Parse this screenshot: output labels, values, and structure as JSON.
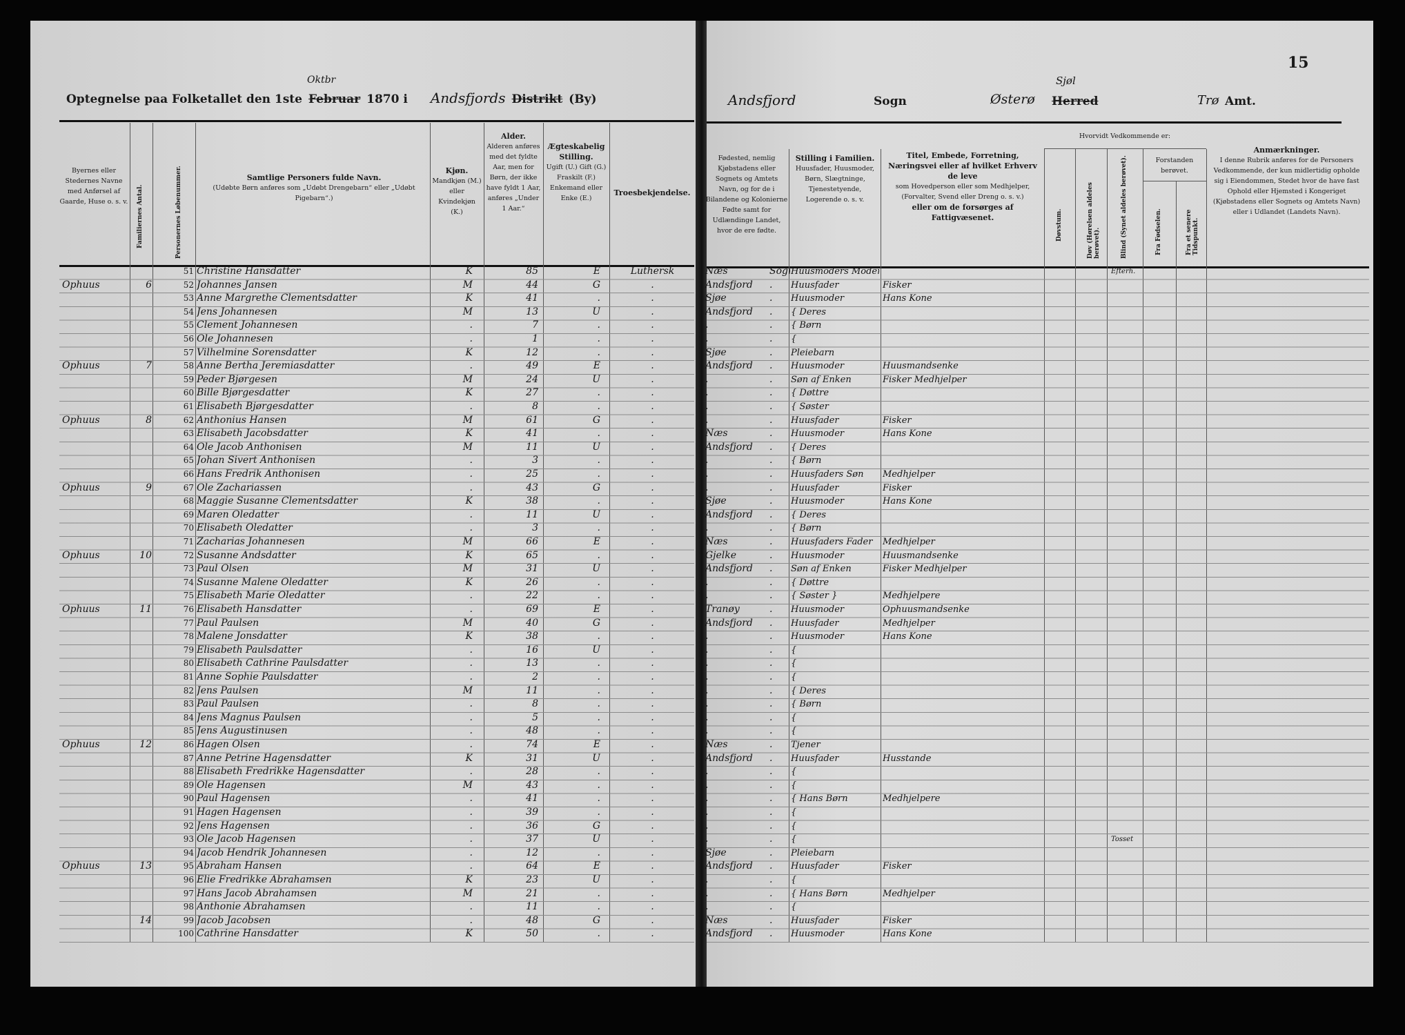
{
  "header": {
    "title_prefix": "Optegnelse paa Folketallet den 1ste",
    "month_printed": "Februar",
    "month_written": "Oktbr",
    "year_suffix": "1870 i",
    "district_written": "Andsfjords",
    "district_label": "Distrikt",
    "district_by": "(By)",
    "sogn_written": "Andsfjord",
    "sogn_label": "Sogn",
    "herred_written": "Østerø",
    "herred_label": "Herred",
    "herred_alt": "Sjøl",
    "amt_written": "Trø",
    "amt_label": "Amt.",
    "page_number": "15"
  },
  "columns": {
    "place": "Byernes eller Stedernes Navne med Anførsel af Gaarde, Huse o. s. v.",
    "families": "Familiernes Antal.",
    "person_no": "Personernes Løbenummer.",
    "name_title": "Samtlige Personers fulde Navn.",
    "name_note": "(Udøbte Børn anføres som „Udøbt Drengebarn“ eller „Udøbt Pigebarn“.)",
    "sex_title": "Kjøn.",
    "sex_note": "Mandkjøn (M.) eller Kvindekjøn (K.)",
    "age_title": "Alder.",
    "age_note": "Alderen anføres med det fyldte Aar, men for Børn, der ikke have fyldt 1 Aar, anføres „Under 1 Aar.“",
    "civil_title": "Ægteskabelig Stilling.",
    "civil_note": "Ugift (U.) Gift (G.) Fraskilt (F.) Enkemand eller Enke (E.)",
    "faith": "Troesbekjendelse.",
    "born": "Fødested, nemlig Kjøbstadens eller Sognets og Amtets Navn, og for de i Bilandene og Kolonierne Fødte samt for Udlændinge Landet, hvor de ere fødte.",
    "role_title": "Stilling i Familien.",
    "role_note": "Huusfader, Huusmoder, Børn, Slægtninge, Tjenestetyende, Logerende o. s. v.",
    "occ_title": "Titel, Embede, Forretning, Næringsvei eller af hvilket Erhverv de leve",
    "occ_note": "som Hovedperson eller som Medhjelper, (Forvalter, Svend eller Dreng o. s. v.)",
    "occ_tail": "eller om de forsørges af Fattigvæsenet.",
    "disab_group": "Hvorvidt Vedkommende er:",
    "deafmute": "Døvstum.",
    "deaf": "Døv (Hørelsen aldeles berøvet).",
    "blind": "Blind (Synet aldeles berøvet).",
    "insane_group": "Forstanden berøvet.",
    "from_birth": "Fra Fødselen.",
    "later": "Fra et senere Tidspunkt.",
    "remarks_title": "Anmærkninger.",
    "remarks_note": "I denne Rubrik anføres for de Personers Vedkommende, der kun midlertidig opholde sig i Eiendommen, Stedet hvor de have fast Ophold eller Hjemsted i Kongeriget (Kjøbstadens eller Sognets og Amtets Navn) eller i Udlandet (Landets Navn)."
  },
  "rows": [
    {
      "n": "51",
      "place": "",
      "fam": "",
      "name": "Christine Hansdatter",
      "sex": "K",
      "age": "85",
      "civil": "E",
      "faith": "Luthersk",
      "born": "Næs",
      "sogn": "Sogn",
      "role": "Huusmoders Moder",
      "occ": "",
      "remark": "Efterh."
    },
    {
      "n": "52",
      "place": "Ophuus",
      "fam": "6",
      "name": "Johannes Jansen",
      "sex": "M",
      "age": "44",
      "civil": "G",
      "faith": ".",
      "born": "Andsfjord",
      "sogn": ".",
      "role": "Huusfader",
      "occ": "Fisker",
      "remark": ""
    },
    {
      "n": "53",
      "place": "",
      "fam": "",
      "name": "Anne Margrethe Clementsdatter",
      "sex": "K",
      "age": "41",
      "civil": ".",
      "faith": ".",
      "born": "Sjøe",
      "sogn": ".",
      "role": "Huusmoder",
      "occ": "Hans Kone",
      "remark": ""
    },
    {
      "n": "54",
      "place": "",
      "fam": "",
      "name": "Jens Johannesen",
      "sex": "M",
      "age": "13",
      "civil": "U",
      "faith": ".",
      "born": "Andsfjord",
      "sogn": ".",
      "role": "{ Deres",
      "occ": "",
      "remark": ""
    },
    {
      "n": "55",
      "place": "",
      "fam": "",
      "name": "Clement Johannesen",
      "sex": ".",
      "age": "7",
      "civil": ".",
      "faith": ".",
      "born": ".",
      "sogn": ".",
      "role": "{   Børn",
      "occ": "",
      "remark": ""
    },
    {
      "n": "56",
      "place": "",
      "fam": "",
      "name": "Ole Johannesen",
      "sex": ".",
      "age": "1",
      "civil": ".",
      "faith": ".",
      "born": ".",
      "sogn": ".",
      "role": "{",
      "occ": "",
      "remark": ""
    },
    {
      "n": "57",
      "place": "",
      "fam": "",
      "name": "Vilhelmine Sorensdatter",
      "sex": "K",
      "age": "12",
      "civil": ".",
      "faith": ".",
      "born": "Sjøe",
      "sogn": ".",
      "role": "Pleiebarn",
      "occ": "",
      "remark": ""
    },
    {
      "n": "58",
      "place": "Ophuus",
      "fam": "7",
      "name": "Anne Bertha Jeremiasdatter",
      "sex": ".",
      "age": "49",
      "civil": "E",
      "faith": ".",
      "born": "Andsfjord",
      "sogn": ".",
      "role": "Huusmoder",
      "occ": "Huusmandsenke",
      "remark": ""
    },
    {
      "n": "59",
      "place": "",
      "fam": "",
      "name": "Peder Bjørgesen",
      "sex": "M",
      "age": "24",
      "civil": "U",
      "faith": ".",
      "born": ".",
      "sogn": ".",
      "role": "Søn af Enken",
      "occ": "Fisker Medhjelper",
      "remark": ""
    },
    {
      "n": "60",
      "place": "",
      "fam": "",
      "name": "Bille Bjørgesdatter",
      "sex": "K",
      "age": "27",
      "civil": ".",
      "faith": ".",
      "born": ".",
      "sogn": ".",
      "role": "{ Døttre",
      "occ": "",
      "remark": ""
    },
    {
      "n": "61",
      "place": "",
      "fam": "",
      "name": "Elisabeth Bjørgesdatter",
      "sex": ".",
      "age": "8",
      "civil": ".",
      "faith": ".",
      "born": ".",
      "sogn": ".",
      "role": "{ Søster",
      "occ": "",
      "remark": ""
    },
    {
      "n": "62",
      "place": "Ophuus",
      "fam": "8",
      "name": "Anthonius Hansen",
      "sex": "M",
      "age": "61",
      "civil": "G",
      "faith": ".",
      "born": ".",
      "sogn": ".",
      "role": "Huusfader",
      "occ": "Fisker",
      "remark": ""
    },
    {
      "n": "63",
      "place": "",
      "fam": "",
      "name": "Elisabeth Jacobsdatter",
      "sex": "K",
      "age": "41",
      "civil": ".",
      "faith": ".",
      "born": "Næs",
      "sogn": ".",
      "role": "Huusmoder",
      "occ": "Hans Kone",
      "remark": ""
    },
    {
      "n": "64",
      "place": "",
      "fam": "",
      "name": "Ole Jacob Anthonisen",
      "sex": "M",
      "age": "11",
      "civil": "U",
      "faith": ".",
      "born": "Andsfjord",
      "sogn": ".",
      "role": "{ Deres",
      "occ": "",
      "remark": ""
    },
    {
      "n": "65",
      "place": "",
      "fam": "",
      "name": "Johan Sivert Anthonisen",
      "sex": ".",
      "age": "3",
      "civil": ".",
      "faith": ".",
      "born": ".",
      "sogn": ".",
      "role": "{   Børn",
      "occ": "",
      "remark": ""
    },
    {
      "n": "66",
      "place": "",
      "fam": "",
      "name": "Hans Fredrik Anthonisen",
      "sex": ".",
      "age": "25",
      "civil": ".",
      "faith": ".",
      "born": ".",
      "sogn": ".",
      "role": "Huusfaders Søn",
      "occ": "Medhjelper",
      "remark": ""
    },
    {
      "n": "67",
      "place": "Ophuus",
      "fam": "9",
      "name": "Ole Zachariassen",
      "sex": ".",
      "age": "43",
      "civil": "G",
      "faith": ".",
      "born": ".",
      "sogn": ".",
      "role": "Huusfader",
      "occ": "Fisker",
      "remark": ""
    },
    {
      "n": "68",
      "place": "",
      "fam": "",
      "name": "Maggie Susanne Clementsdatter",
      "sex": "K",
      "age": "38",
      "civil": ".",
      "faith": ".",
      "born": "Sjøe",
      "sogn": ".",
      "role": "Huusmoder",
      "occ": "Hans Kone",
      "remark": ""
    },
    {
      "n": "69",
      "place": "",
      "fam": "",
      "name": "Maren Oledatter",
      "sex": ".",
      "age": "11",
      "civil": "U",
      "faith": ".",
      "born": "Andsfjord",
      "sogn": ".",
      "role": "{ Deres",
      "occ": "",
      "remark": ""
    },
    {
      "n": "70",
      "place": "",
      "fam": "",
      "name": "Elisabeth Oledatter",
      "sex": ".",
      "age": "3",
      "civil": ".",
      "faith": ".",
      "born": ".",
      "sogn": ".",
      "role": "{   Børn",
      "occ": "",
      "remark": ""
    },
    {
      "n": "71",
      "place": "",
      "fam": "",
      "name": "Zacharias Johannesen",
      "sex": "M",
      "age": "66",
      "civil": "E",
      "faith": ".",
      "born": "Næs",
      "sogn": ".",
      "role": "Huusfaders Fader",
      "occ": "Medhjelper",
      "remark": ""
    },
    {
      "n": "72",
      "place": "Ophuus",
      "fam": "10",
      "name": "Susanne Andsdatter",
      "sex": "K",
      "age": "65",
      "civil": ".",
      "faith": ".",
      "born": "Gjelke",
      "sogn": ".",
      "role": "Huusmoder",
      "occ": "Huusmandsenke",
      "remark": ""
    },
    {
      "n": "73",
      "place": "",
      "fam": "",
      "name": "Paul Olsen",
      "sex": "M",
      "age": "31",
      "civil": "U",
      "faith": ".",
      "born": "Andsfjord",
      "sogn": ".",
      "role": "Søn af Enken",
      "occ": "Fisker Medhjelper",
      "remark": ""
    },
    {
      "n": "74",
      "place": "",
      "fam": "",
      "name": "Susanne Malene Oledatter",
      "sex": "K",
      "age": "26",
      "civil": ".",
      "faith": ".",
      "born": ".",
      "sogn": ".",
      "role": "{ Døttre",
      "occ": "",
      "remark": ""
    },
    {
      "n": "75",
      "place": "",
      "fam": "",
      "name": "Elisabeth Marie Oledatter",
      "sex": ".",
      "age": "22",
      "civil": ".",
      "faith": ".",
      "born": ".",
      "sogn": ".",
      "role": "{ Søster }",
      "occ": "Medhjelpere",
      "remark": ""
    },
    {
      "n": "76",
      "place": "Ophuus",
      "fam": "11",
      "name": "Elisabeth Hansdatter",
      "sex": ".",
      "age": "69",
      "civil": "E",
      "faith": ".",
      "born": "Tranøy",
      "sogn": ".",
      "role": "Huusmoder",
      "occ": "Ophuusmandsenke",
      "remark": ""
    },
    {
      "n": "77",
      "place": "",
      "fam": "",
      "name": "Paul Paulsen",
      "sex": "M",
      "age": "40",
      "civil": "G",
      "faith": ".",
      "born": "Andsfjord",
      "sogn": ".",
      "role": "Huusfader",
      "occ": "Medhjelper",
      "remark": ""
    },
    {
      "n": "78",
      "place": "",
      "fam": "",
      "name": "Malene Jonsdatter",
      "sex": "K",
      "age": "38",
      "civil": ".",
      "faith": ".",
      "born": ".",
      "sogn": ".",
      "role": "Huusmoder",
      "occ": "Hans Kone",
      "remark": ""
    },
    {
      "n": "79",
      "place": "",
      "fam": "",
      "name": "Elisabeth Paulsdatter",
      "sex": ".",
      "age": "16",
      "civil": "U",
      "faith": ".",
      "born": ".",
      "sogn": ".",
      "role": "{",
      "occ": "",
      "remark": ""
    },
    {
      "n": "80",
      "place": "",
      "fam": "",
      "name": "Elisabeth Cathrine Paulsdatter",
      "sex": ".",
      "age": "13",
      "civil": ".",
      "faith": ".",
      "born": ".",
      "sogn": ".",
      "role": "{",
      "occ": "",
      "remark": ""
    },
    {
      "n": "81",
      "place": "",
      "fam": "",
      "name": "Anne Sophie Paulsdatter",
      "sex": ".",
      "age": "2",
      "civil": ".",
      "faith": ".",
      "born": ".",
      "sogn": ".",
      "role": "{",
      "occ": "",
      "remark": ""
    },
    {
      "n": "82",
      "place": "",
      "fam": "",
      "name": "Jens Paulsen",
      "sex": "M",
      "age": "11",
      "civil": ".",
      "faith": ".",
      "born": ".",
      "sogn": ".",
      "role": "{ Deres",
      "occ": "",
      "remark": ""
    },
    {
      "n": "83",
      "place": "",
      "fam": "",
      "name": "Paul Paulsen",
      "sex": ".",
      "age": "8",
      "civil": ".",
      "faith": ".",
      "born": ".",
      "sogn": ".",
      "role": "{   Børn",
      "occ": "",
      "remark": ""
    },
    {
      "n": "84",
      "place": "",
      "fam": "",
      "name": "Jens Magnus Paulsen",
      "sex": ".",
      "age": "5",
      "civil": ".",
      "faith": ".",
      "born": ".",
      "sogn": ".",
      "role": "{",
      "occ": "",
      "remark": ""
    },
    {
      "n": "85",
      "place": "",
      "fam": "",
      "name": "Jens Augustinusen",
      "sex": ".",
      "age": "48",
      "civil": ".",
      "faith": ".",
      "born": ".",
      "sogn": ".",
      "role": "{",
      "occ": "",
      "remark": ""
    },
    {
      "n": "86",
      "place": "Ophuus",
      "fam": "12",
      "name": "Hagen Olsen",
      "sex": ".",
      "age": "74",
      "civil": "E",
      "faith": ".",
      "born": "Næs",
      "sogn": ".",
      "role": "Tjener",
      "occ": "",
      "remark": ""
    },
    {
      "n": "87",
      "place": "",
      "fam": "",
      "name": "Anne Petrine Hagensdatter",
      "sex": "K",
      "age": "31",
      "civil": "U",
      "faith": ".",
      "born": "Andsfjord",
      "sogn": ".",
      "role": "Huusfader",
      "occ": "Husstande",
      "remark": ""
    },
    {
      "n": "88",
      "place": "",
      "fam": "",
      "name": "Elisabeth Fredrikke Hagensdatter",
      "sex": ".",
      "age": "28",
      "civil": ".",
      "faith": ".",
      "born": ".",
      "sogn": ".",
      "role": "{",
      "occ": "",
      "remark": ""
    },
    {
      "n": "89",
      "place": "",
      "fam": "",
      "name": "Ole Hagensen",
      "sex": "M",
      "age": "43",
      "civil": ".",
      "faith": ".",
      "born": ".",
      "sogn": ".",
      "role": "{",
      "occ": "",
      "remark": ""
    },
    {
      "n": "90",
      "place": "",
      "fam": "",
      "name": "Paul Hagensen",
      "sex": ".",
      "age": "41",
      "civil": ".",
      "faith": ".",
      "born": ".",
      "sogn": ".",
      "role": "{ Hans Børn",
      "occ": "Medhjelpere",
      "remark": ""
    },
    {
      "n": "91",
      "place": "",
      "fam": "",
      "name": "Hagen Hagensen",
      "sex": ".",
      "age": "39",
      "civil": ".",
      "faith": ".",
      "born": ".",
      "sogn": ".",
      "role": "{",
      "occ": "",
      "remark": ""
    },
    {
      "n": "92",
      "place": "",
      "fam": "",
      "name": "Jens Hagensen",
      "sex": ".",
      "age": "36",
      "civil": "G",
      "faith": ".",
      "born": ".",
      "sogn": ".",
      "role": "{",
      "occ": "",
      "remark": ""
    },
    {
      "n": "93",
      "place": "",
      "fam": "",
      "name": "Ole Jacob Hagensen",
      "sex": ".",
      "age": "37",
      "civil": "U",
      "faith": ".",
      "born": ".",
      "sogn": ".",
      "role": "{",
      "occ": "",
      "remark": "Tosset"
    },
    {
      "n": "94",
      "place": "",
      "fam": "",
      "name": "Jacob Hendrik Johannesen",
      "sex": ".",
      "age": "12",
      "civil": ".",
      "faith": ".",
      "born": "Sjøe",
      "sogn": ".",
      "role": "Pleiebarn",
      "occ": "",
      "remark": ""
    },
    {
      "n": "95",
      "place": "Ophuus",
      "fam": "13",
      "name": "Abraham Hansen",
      "sex": ".",
      "age": "64",
      "civil": "E",
      "faith": ".",
      "born": "Andsfjord",
      "sogn": ".",
      "role": "Huusfader",
      "occ": "Fisker",
      "remark": ""
    },
    {
      "n": "96",
      "place": "",
      "fam": "",
      "name": "Elie Fredrikke Abrahamsen",
      "sex": "K",
      "age": "23",
      "civil": "U",
      "faith": ".",
      "born": ".",
      "sogn": ".",
      "role": "{",
      "occ": "",
      "remark": ""
    },
    {
      "n": "97",
      "place": "",
      "fam": "",
      "name": "Hans Jacob Abrahamsen",
      "sex": "M",
      "age": "21",
      "civil": ".",
      "faith": ".",
      "born": ".",
      "sogn": ".",
      "role": "{ Hans Børn",
      "occ": "Medhjelper",
      "remark": ""
    },
    {
      "n": "98",
      "place": "",
      "fam": "",
      "name": "Anthonie Abrahamsen",
      "sex": ".",
      "age": "11",
      "civil": ".",
      "faith": ".",
      "born": ".",
      "sogn": ".",
      "role": "{",
      "occ": "",
      "remark": ""
    },
    {
      "n": "99",
      "place": "",
      "fam": "14",
      "name": "Jacob Jacobsen",
      "sex": ".",
      "age": "48",
      "civil": "G",
      "faith": ".",
      "born": "Næs",
      "sogn": ".",
      "role": "Huusfader",
      "occ": "Fisker",
      "remark": ""
    },
    {
      "n": "100",
      "place": "",
      "fam": "",
      "name": "Cathrine Hansdatter",
      "sex": "K",
      "age": "50",
      "civil": ".",
      "faith": ".",
      "born": "Andsfjord",
      "sogn": ".",
      "role": "Huusmoder",
      "occ": "Hans Kone",
      "remark": ""
    }
  ]
}
